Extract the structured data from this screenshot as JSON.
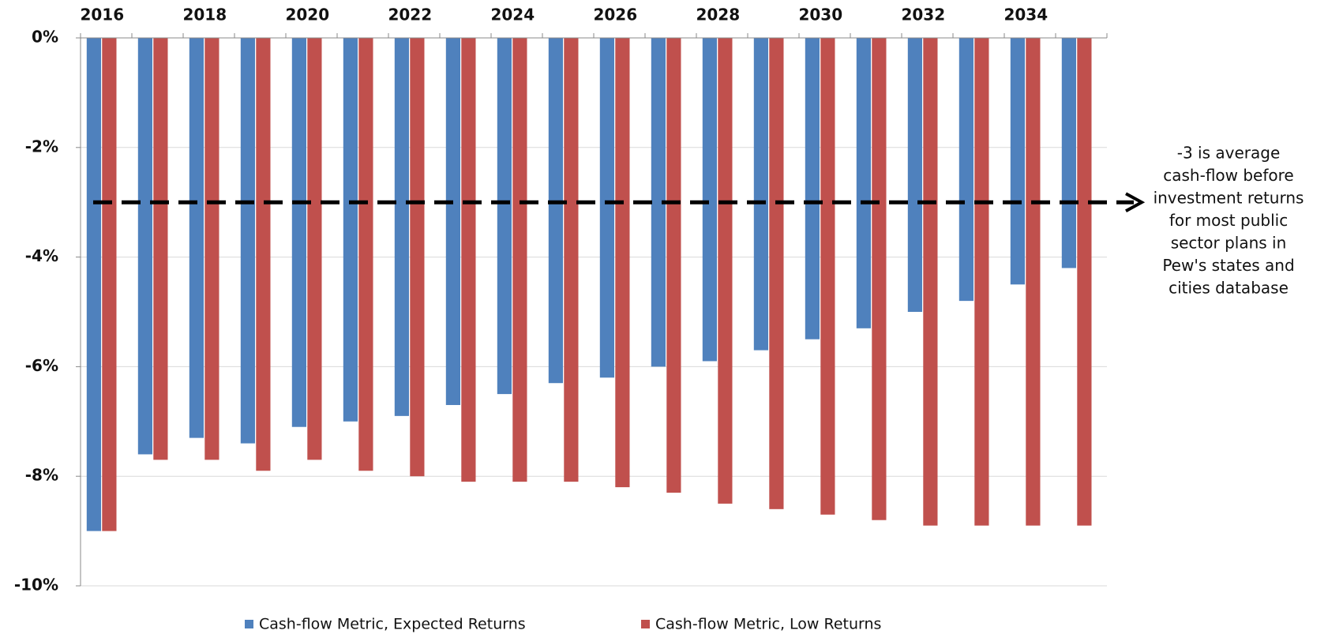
{
  "chart_data": {
    "type": "bar",
    "categories": [
      "2016",
      null,
      "2018",
      null,
      "2020",
      null,
      "2022",
      null,
      "2024",
      null,
      "2026",
      null,
      "2028",
      null,
      "2030",
      null,
      "2032",
      null,
      "2034",
      null
    ],
    "series": [
      {
        "name": "Cash-flow Metric, Expected Returns",
        "color": "#4f81bd",
        "values": [
          -9.0,
          -7.6,
          -7.3,
          -7.4,
          -7.1,
          -7.0,
          -6.9,
          -6.7,
          -6.5,
          -6.3,
          -6.2,
          -6.0,
          -5.9,
          -5.7,
          -5.5,
          -5.3,
          -5.0,
          -4.8,
          -4.5,
          -4.2
        ]
      },
      {
        "name": "Cash-flow Metric, Low Returns",
        "color": "#c0504d",
        "values": [
          -9.0,
          -7.7,
          -7.7,
          -7.9,
          -7.7,
          -7.9,
          -8.0,
          -8.1,
          -8.1,
          -8.1,
          -8.2,
          -8.3,
          -8.5,
          -8.6,
          -8.7,
          -8.8,
          -8.9,
          -8.9,
          -8.9,
          -8.9
        ]
      }
    ],
    "ylim": [
      -10,
      0
    ],
    "yticks": [
      {
        "value": 0,
        "label": "0%"
      },
      {
        "value": -2,
        "label": "-2%"
      },
      {
        "value": -4,
        "label": "-4%"
      },
      {
        "value": -6,
        "label": "-6%"
      },
      {
        "value": -8,
        "label": "-8%"
      },
      {
        "value": -10,
        "label": "-10%"
      }
    ],
    "grid": true,
    "reference_line": -3,
    "annotation": [
      "-3 is average",
      "cash-flow before",
      "investment returns",
      "for most public",
      "sector plans in",
      "Pew's states and",
      "cities database"
    ],
    "legend": "bottom"
  }
}
